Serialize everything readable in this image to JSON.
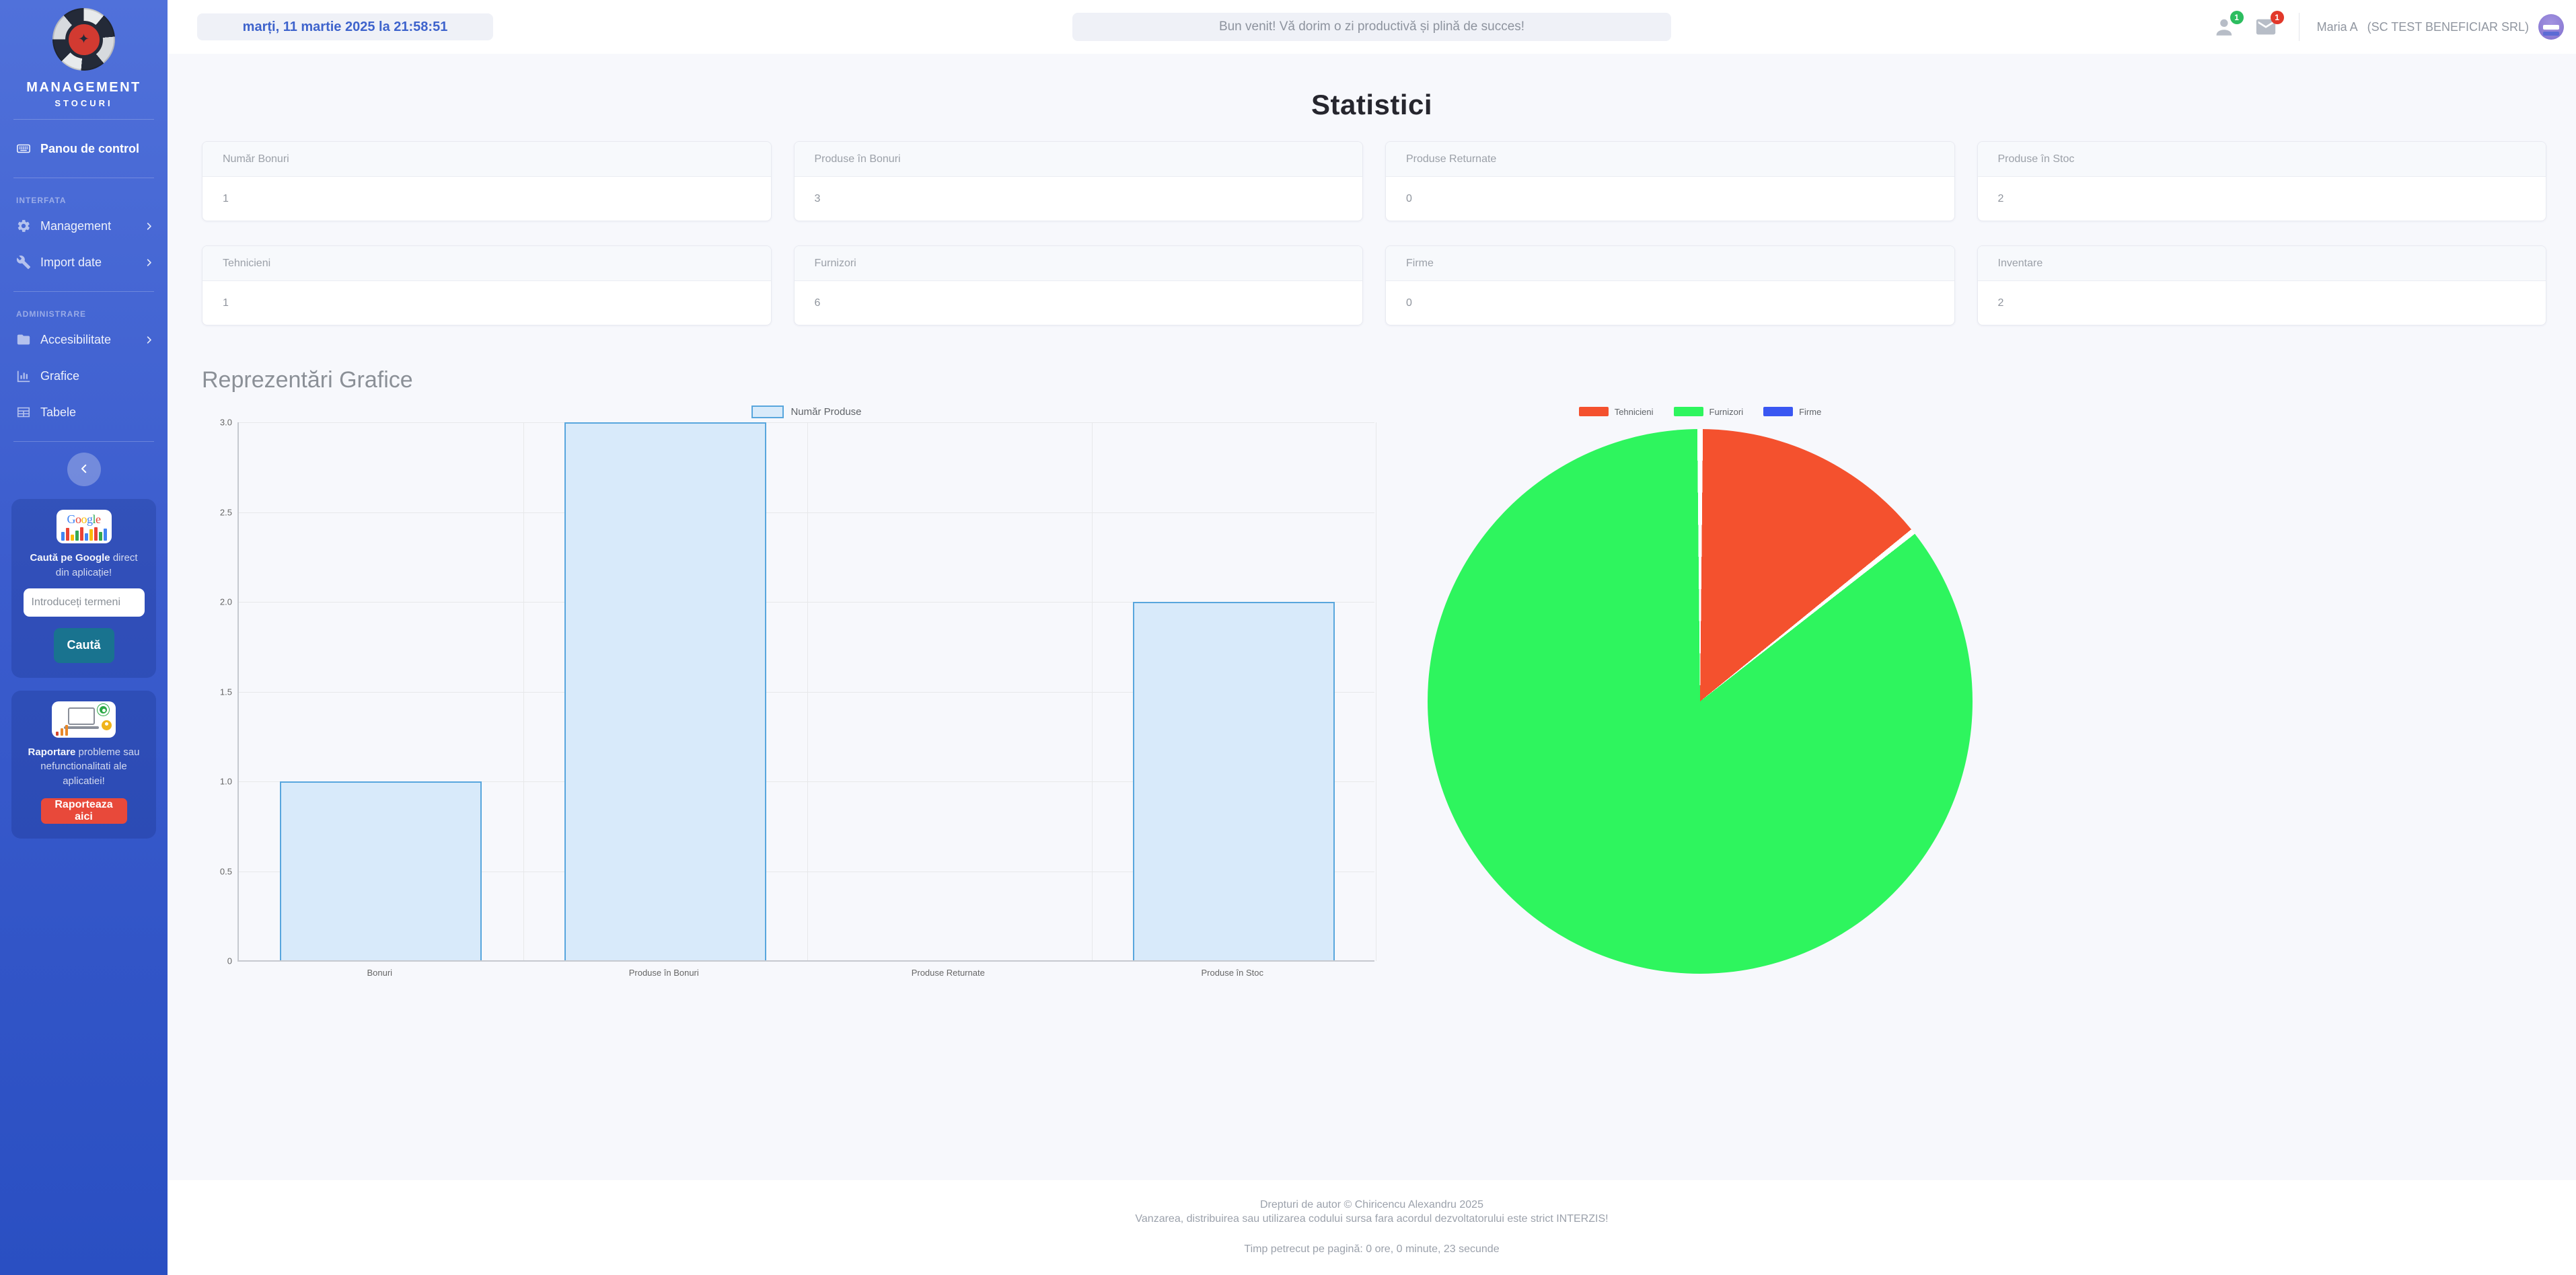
{
  "sidebar": {
    "brand": {
      "title": "MANAGEMENT",
      "subtitle": "STOCURI"
    },
    "dashboard": {
      "label": "Panou de control",
      "icon": "keyboard-icon",
      "slug": "panou-de-control"
    },
    "sections": [
      {
        "label": "INTERFATA",
        "items": [
          {
            "label": "Management",
            "icon": "gear-icon",
            "chevron": true,
            "slug": "management"
          },
          {
            "label": "Import date",
            "icon": "wrench-icon",
            "chevron": true,
            "slug": "import-date"
          }
        ]
      },
      {
        "label": "ADMINISTRARE",
        "items": [
          {
            "label": "Accesibilitate",
            "icon": "folder-icon",
            "chevron": true,
            "slug": "accesibilitate"
          },
          {
            "label": "Grafice",
            "icon": "chart-icon",
            "chevron": false,
            "slug": "grafice"
          },
          {
            "label": "Tabele",
            "icon": "table-icon",
            "chevron": false,
            "slug": "tabele"
          }
        ]
      }
    ],
    "google_widget": {
      "logo_text": "Google",
      "caption_bold": "Caută pe Google",
      "caption_rest": " direct din aplicație!",
      "input_placeholder": "Introduceți termeni",
      "button_label": "Caută"
    },
    "report_widget": {
      "caption_bold": "Raportare",
      "caption_rest": " probleme sau nefunctionalitati ale aplicatiei!",
      "button_label": "Raporteaza aici"
    }
  },
  "topbar": {
    "datetime": "marți, 11 martie 2025 la 21:58:51",
    "welcome": "Bun venit! Vă dorim o zi productivă și plină de succes!",
    "user_badge_count": "1",
    "mail_badge_count": "1",
    "user_name": "Maria A",
    "company": "(SC TEST BENEFICIAR SRL)"
  },
  "stats": {
    "title": "Statistici",
    "cards": [
      {
        "label": "Număr Bonuri",
        "value": "1"
      },
      {
        "label": "Produse în Bonuri",
        "value": "3"
      },
      {
        "label": "Produse Returnate",
        "value": "0"
      },
      {
        "label": "Produse în Stoc",
        "value": "2"
      },
      {
        "label": "Tehnicieni",
        "value": "1"
      },
      {
        "label": "Furnizori",
        "value": "6"
      },
      {
        "label": "Firme",
        "value": "0"
      },
      {
        "label": "Inventare",
        "value": "2"
      }
    ]
  },
  "charts_section": {
    "title": "Reprezentări Grafice"
  },
  "chart_data": [
    {
      "type": "bar",
      "legend": [
        {
          "label": "Număr Produse",
          "fill": "#d8eafa",
          "border": "#58a6dd"
        }
      ],
      "categories": [
        "Bonuri",
        "Produse în Bonuri",
        "Produse Returnate",
        "Produse în Stoc"
      ],
      "values": [
        1,
        3,
        0,
        2
      ],
      "ylim": [
        0,
        3
      ],
      "yticks": [
        "3.0",
        "2.5",
        "2.0",
        "1.5",
        "1.0",
        "0.5",
        "0"
      ],
      "grid": true,
      "legend_position": "top"
    },
    {
      "type": "pie",
      "labels": [
        "Tehnicieni",
        "Furnizori",
        "Firme"
      ],
      "values": [
        1,
        6,
        0
      ],
      "colors": [
        "#f4512e",
        "#2ef55e",
        "#3a57f2"
      ],
      "legend_position": "top"
    }
  ],
  "footer": {
    "line1": "Drepturi de autor © Chiricencu Alexandru 2025",
    "line2": "Vanzarea, distribuirea sau utilizarea codului sursa fara acordul dezvoltatorului este strict INTERZIS!",
    "line3": "Timp petrecut pe pagină: 0 ore, 0 minute, 23 secunde"
  },
  "colors": {
    "sidebar_top": "#5071da",
    "sidebar_bottom": "#2a4fc2",
    "accent_blue": "#3e63cc",
    "content_bg": "#f7f8fc",
    "teal_button": "#19738f",
    "red_button": "#e8493a",
    "badge_green": "#2cbd5f",
    "badge_red": "#e2382a",
    "bar_fill": "#d8eafa",
    "bar_border": "#58a6dd",
    "pie_red": "#f4512e",
    "pie_green": "#2ef55e",
    "pie_blue": "#3a57f2"
  }
}
